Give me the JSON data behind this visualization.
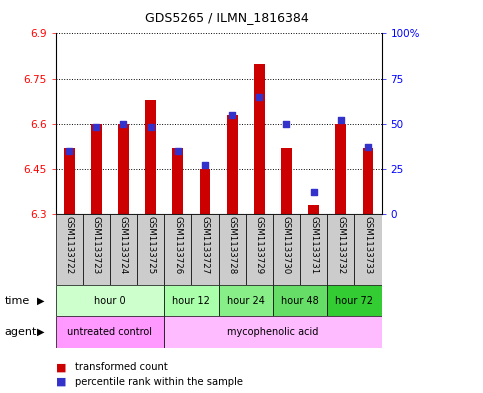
{
  "title": "GDS5265 / ILMN_1816384",
  "samples": [
    "GSM1133722",
    "GSM1133723",
    "GSM1133724",
    "GSM1133725",
    "GSM1133726",
    "GSM1133727",
    "GSM1133728",
    "GSM1133729",
    "GSM1133730",
    "GSM1133731",
    "GSM1133732",
    "GSM1133733"
  ],
  "red_values": [
    6.52,
    6.6,
    6.6,
    6.68,
    6.52,
    6.45,
    6.63,
    6.8,
    6.52,
    6.33,
    6.6,
    6.52
  ],
  "blue_values": [
    35,
    48,
    50,
    48,
    35,
    27,
    55,
    65,
    50,
    12,
    52,
    37
  ],
  "ylim_left": [
    6.3,
    6.9
  ],
  "ylim_right": [
    0,
    100
  ],
  "yticks_left": [
    6.3,
    6.45,
    6.6,
    6.75,
    6.9
  ],
  "yticks_right": [
    0,
    25,
    50,
    75,
    100
  ],
  "ytick_labels_left": [
    "6.3",
    "6.45",
    "6.6",
    "6.75",
    "6.9"
  ],
  "ytick_labels_right": [
    "0",
    "25",
    "50",
    "75",
    "100%"
  ],
  "baseline": 6.3,
  "time_groups": [
    {
      "label": "hour 0",
      "start": 0,
      "end": 3,
      "color": "#ccffcc"
    },
    {
      "label": "hour 12",
      "start": 4,
      "end": 5,
      "color": "#aaffaa"
    },
    {
      "label": "hour 24",
      "start": 6,
      "end": 7,
      "color": "#88ee88"
    },
    {
      "label": "hour 48",
      "start": 8,
      "end": 9,
      "color": "#66dd66"
    },
    {
      "label": "hour 72",
      "start": 10,
      "end": 11,
      "color": "#33cc33"
    }
  ],
  "agent_groups": [
    {
      "label": "untreated control",
      "start": 0,
      "end": 3,
      "color": "#ff99ff"
    },
    {
      "label": "mycophenolic acid",
      "start": 4,
      "end": 11,
      "color": "#ffbbff"
    }
  ],
  "bar_color": "#cc0000",
  "dot_color": "#3333cc",
  "sample_bg": "#cccccc",
  "legend_items": [
    "transformed count",
    "percentile rank within the sample"
  ],
  "legend_colors": [
    "#cc0000",
    "#3333cc"
  ]
}
